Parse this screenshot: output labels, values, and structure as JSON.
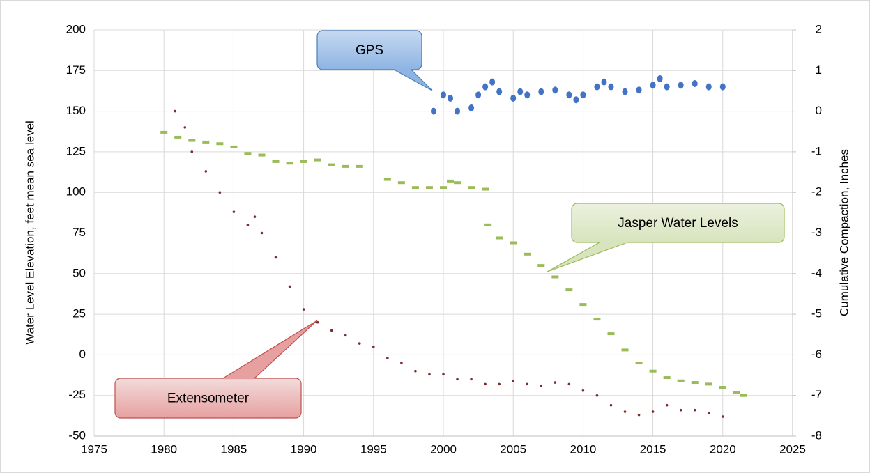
{
  "chart_data": {
    "type": "scatter",
    "ylabel": "Water Level Elevation, feet mean sea level",
    "y2label": "Cumulative Compaction, Inches",
    "xlim": [
      1975,
      2025
    ],
    "xticks": [
      1975,
      1980,
      1985,
      1990,
      1995,
      2000,
      2005,
      2010,
      2015,
      2020,
      2025
    ],
    "ylim": [
      -50,
      200
    ],
    "yticks": [
      -50,
      -25,
      0,
      25,
      50,
      75,
      100,
      125,
      150,
      175,
      200
    ],
    "y2lim": [
      -8,
      2
    ],
    "y2ticks": [
      -8,
      -7,
      -6,
      -5,
      -4,
      -3,
      -2,
      -1,
      0,
      1,
      2
    ],
    "grid": true,
    "series": [
      {
        "name": "GPS",
        "color": "#4472c4",
        "axis": "y2",
        "x": [
          1999.3,
          2000,
          2000.5,
          2001,
          2002,
          2002.5,
          2003,
          2003.5,
          2004,
          2005,
          2005.5,
          2006,
          2007,
          2008,
          2009,
          2009.5,
          2010,
          2011,
          2011.5,
          2012,
          2013,
          2014,
          2015,
          2015.5,
          2016,
          2017,
          2018,
          2019,
          2020
        ],
        "values": [
          0,
          0.4,
          0.32,
          0,
          0.08,
          0.4,
          0.6,
          0.72,
          0.48,
          0.32,
          0.48,
          0.4,
          0.48,
          0.52,
          0.4,
          0.28,
          0.4,
          0.6,
          0.72,
          0.6,
          0.48,
          0.52,
          0.64,
          0.8,
          0.6,
          0.64,
          0.68,
          0.6,
          0.6
        ]
      },
      {
        "name": "Jasper Water Levels",
        "color": "#9bbb59",
        "x": [
          1980,
          1981,
          1982,
          1983,
          1984,
          1985,
          1986,
          1987,
          1988,
          1989,
          1990,
          1991,
          1992,
          1993,
          1994,
          1996,
          1997,
          1998,
          1999,
          2000,
          2000.5,
          2001,
          2002,
          2003,
          2003.2,
          2004,
          2005,
          2006,
          2007,
          2008,
          2009,
          2010,
          2011,
          2012,
          2013,
          2014,
          2015,
          2016,
          2017,
          2018,
          2019,
          2020,
          2021,
          2021.5
        ],
        "values": [
          137,
          134,
          132,
          131,
          130,
          128,
          124,
          123,
          119,
          118,
          119,
          120,
          117,
          116,
          116,
          108,
          106,
          103,
          103,
          103,
          107,
          106,
          103,
          102,
          80,
          72,
          69,
          62,
          55,
          48,
          40,
          31,
          22,
          13,
          3,
          -5,
          -10,
          -14,
          -16,
          -17,
          -18,
          -20,
          -23,
          -25
        ]
      },
      {
        "name": "Extensometer",
        "color": "#7b2c2c",
        "axis": "y2",
        "x": [
          1980.8,
          1981.5,
          1982,
          1983,
          1984,
          1985,
          1986,
          1986.5,
          1987,
          1988,
          1989,
          1990,
          1991,
          1992,
          1993,
          1994,
          1995,
          1996,
          1997,
          1998,
          1999,
          2000,
          2001,
          2002,
          2003,
          2004,
          2005,
          2006,
          2007,
          2008,
          2009,
          2010,
          2011,
          2012,
          2013,
          2014,
          2015,
          2016,
          2017,
          2018,
          2019,
          2020
        ],
        "values": [
          0,
          -0.4,
          -1,
          -1.48,
          -2,
          -2.48,
          -2.8,
          -2.6,
          -3,
          -3.6,
          -4.32,
          -4.88,
          -5.2,
          -5.4,
          -5.52,
          -5.72,
          -5.8,
          -6.08,
          -6.2,
          -6.4,
          -6.48,
          -6.48,
          -6.6,
          -6.6,
          -6.72,
          -6.72,
          -6.64,
          -6.72,
          -6.76,
          -6.68,
          -6.72,
          -6.88,
          -7,
          -7.24,
          -7.4,
          -7.48,
          -7.4,
          -7.24,
          -7.36,
          -7.36,
          -7.44,
          -7.52
        ]
      }
    ]
  }
}
